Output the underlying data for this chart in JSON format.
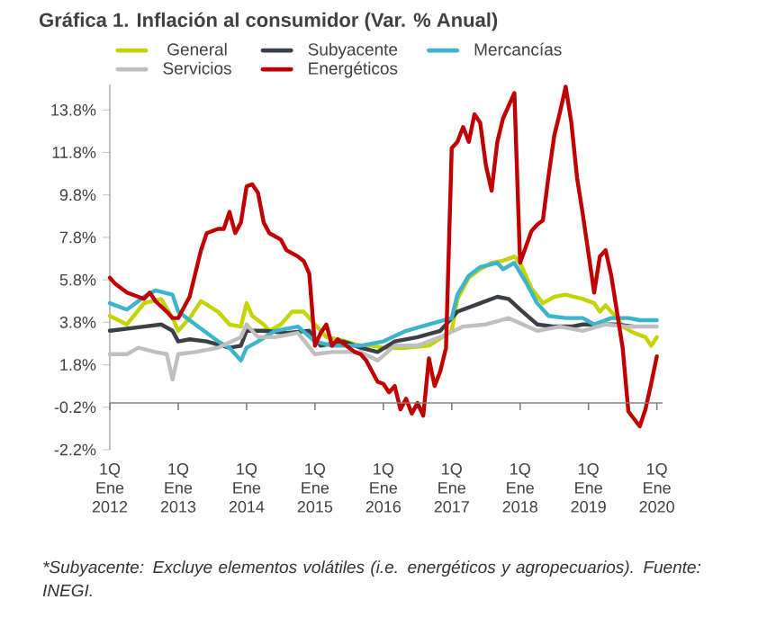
{
  "chart_data": {
    "type": "line",
    "title": "Gráfica 1. Inflación al consumidor (Var. % Anual)",
    "annotations": [
      "*Subyacente: Excluye elementos volátiles (i.e. energéticos y agropecuarios). Fuente: INEGI."
    ],
    "xlim": [
      "2012-01",
      "2020-02"
    ],
    "xticks": [
      {
        "value": "2012-01",
        "label": "1Q Ene 2012"
      },
      {
        "value": "2013-01",
        "label": "1Q Ene 2013"
      },
      {
        "value": "2014-01",
        "label": "1Q Ene 2014"
      },
      {
        "value": "2015-01",
        "label": "1Q Ene 2015"
      },
      {
        "value": "2016-01",
        "label": "1Q Ene 2016"
      },
      {
        "value": "2017-01",
        "label": "1Q Ene 2017"
      },
      {
        "value": "2018-01",
        "label": "1Q Ene 2018"
      },
      {
        "value": "2019-01",
        "label": "1Q Ene 2019"
      },
      {
        "value": "2020-01",
        "label": "1Q Ene 2020"
      }
    ],
    "ylim": [
      -2.2,
      15.0
    ],
    "yticks": [
      {
        "value": -2.2,
        "label": "-2.2%"
      },
      {
        "value": -0.2,
        "label": "-0.2%"
      },
      {
        "value": 1.8,
        "label": "1.8%"
      },
      {
        "value": 3.8,
        "label": "3.8%"
      },
      {
        "value": 5.8,
        "label": "5.8%"
      },
      {
        "value": 7.8,
        "label": "7.8%"
      },
      {
        "value": 9.8,
        "label": "9.8%"
      },
      {
        "value": 11.8,
        "label": "11.8%"
      },
      {
        "value": 13.8,
        "label": "13.8%"
      }
    ],
    "ref_lines": [
      {
        "axis": "y",
        "value": 0,
        "color": "#808080"
      }
    ],
    "legend": "top",
    "line_style": "solid",
    "marker": "none",
    "series": [
      {
        "name": "General",
        "color": "#c3d400",
        "x": [
          "2012-01",
          "2012-04",
          "2012-07",
          "2012-10",
          "2012-12",
          "2013-01",
          "2013-03",
          "2013-05",
          "2013-08",
          "2013-10",
          "2013-12",
          "2014-01",
          "2014-02",
          "2014-04",
          "2014-05",
          "2014-07",
          "2014-09",
          "2014-11",
          "2015-01",
          "2015-03",
          "2015-05",
          "2015-09",
          "2015-11",
          "2016-01",
          "2016-05",
          "2016-09",
          "2017-01",
          "2017-02",
          "2017-04",
          "2017-06",
          "2017-08",
          "2017-10",
          "2017-12",
          "2018-01",
          "2018-03",
          "2018-05",
          "2018-07",
          "2018-09",
          "2018-12",
          "2019-02",
          "2019-03",
          "2019-04",
          "2019-06",
          "2019-07",
          "2019-09",
          "2019-11",
          "2019-12",
          "2020-01"
        ],
        "values": [
          4.1,
          3.7,
          4.7,
          4.9,
          4.0,
          3.4,
          4.0,
          4.8,
          4.3,
          3.7,
          3.6,
          4.7,
          4.1,
          3.7,
          3.4,
          3.7,
          4.3,
          4.3,
          3.7,
          3.1,
          3.0,
          2.7,
          2.7,
          2.6,
          2.6,
          2.7,
          3.4,
          4.9,
          5.9,
          6.3,
          6.6,
          6.7,
          6.9,
          6.6,
          5.4,
          4.7,
          5.0,
          5.1,
          4.9,
          4.7,
          4.3,
          4.6,
          4.0,
          3.6,
          3.3,
          3.1,
          2.7,
          3.1
        ]
      },
      {
        "name": "Subyacente",
        "color": "#3b4048",
        "x": [
          "2012-01",
          "2012-07",
          "2012-10",
          "2012-12",
          "2013-01",
          "2013-03",
          "2013-06",
          "2013-10",
          "2013-12",
          "2014-01",
          "2014-04",
          "2014-08",
          "2014-12",
          "2015-02",
          "2015-06",
          "2015-09",
          "2015-12",
          "2016-03",
          "2016-07",
          "2016-11",
          "2017-02",
          "2017-06",
          "2017-09",
          "2017-11",
          "2018-01",
          "2018-04",
          "2018-07",
          "2018-10",
          "2018-12",
          "2019-03",
          "2019-06",
          "2019-09"
        ],
        "values": [
          3.4,
          3.6,
          3.7,
          3.4,
          2.9,
          3.0,
          2.9,
          2.6,
          2.7,
          3.4,
          3.4,
          3.3,
          3.4,
          2.7,
          2.9,
          2.6,
          2.4,
          2.9,
          3.1,
          3.4,
          4.3,
          4.7,
          5.0,
          4.9,
          4.4,
          3.7,
          3.6,
          3.6,
          3.7,
          3.7,
          3.7,
          3.6
        ]
      },
      {
        "name": "Mercancías",
        "color": "#3cb4cc",
        "x": [
          "2012-01",
          "2012-04",
          "2012-07",
          "2012-09",
          "2012-12",
          "2013-01",
          "2013-04",
          "2013-08",
          "2013-10",
          "2013-12",
          "2014-01",
          "2014-03",
          "2014-06",
          "2014-10",
          "2015-01",
          "2015-04",
          "2015-09",
          "2016-01",
          "2016-05",
          "2016-09",
          "2017-01",
          "2017-02",
          "2017-04",
          "2017-06",
          "2017-09",
          "2017-10",
          "2017-12",
          "2018-02",
          "2018-04",
          "2018-06",
          "2018-09",
          "2018-12",
          "2019-02",
          "2019-05",
          "2019-08",
          "2019-10",
          "2020-01"
        ],
        "values": [
          4.7,
          4.4,
          5.0,
          5.3,
          5.1,
          4.3,
          3.7,
          2.9,
          2.6,
          2.0,
          2.6,
          2.9,
          3.4,
          3.6,
          2.9,
          2.7,
          2.7,
          2.9,
          3.4,
          3.7,
          4.0,
          5.1,
          6.0,
          6.4,
          6.6,
          6.3,
          6.6,
          5.7,
          4.7,
          4.1,
          4.0,
          4.0,
          3.7,
          4.0,
          4.0,
          3.9,
          3.9
        ]
      },
      {
        "name": "Servicios",
        "color": "#bfbfbf",
        "x": [
          "2012-01",
          "2012-04",
          "2012-06",
          "2012-09",
          "2012-11",
          "2012-12",
          "2013-01",
          "2013-04",
          "2013-08",
          "2013-12",
          "2014-01",
          "2014-03",
          "2014-06",
          "2014-10",
          "2015-01",
          "2015-04",
          "2015-09",
          "2015-12",
          "2016-03",
          "2016-07",
          "2016-11",
          "2017-03",
          "2017-07",
          "2017-11",
          "2018-04",
          "2018-08",
          "2018-12",
          "2019-04",
          "2019-08",
          "2020-01"
        ],
        "values": [
          2.3,
          2.3,
          2.6,
          2.4,
          2.3,
          1.1,
          2.3,
          2.4,
          2.6,
          3.1,
          3.7,
          3.1,
          3.1,
          3.3,
          2.3,
          2.4,
          2.4,
          2.0,
          2.7,
          2.7,
          3.1,
          3.6,
          3.7,
          4.0,
          3.4,
          3.6,
          3.4,
          3.7,
          3.6,
          3.6
        ]
      },
      {
        "name": "Energéticos",
        "color": "#c00000",
        "x": [
          "2012-01",
          "2012-02",
          "2012-04",
          "2012-06",
          "2012-07",
          "2012-08",
          "2012-09",
          "2012-11",
          "2012-12",
          "2013-01",
          "2013-02",
          "2013-03",
          "2013-05",
          "2013-06",
          "2013-08",
          "2013-09",
          "2013-10",
          "2013-11",
          "2013-12",
          "2014-01",
          "2014-02",
          "2014-03",
          "2014-04",
          "2014-05",
          "2014-07",
          "2014-08",
          "2014-10",
          "2014-11",
          "2014-12",
          "2015-01",
          "2015-02",
          "2015-03",
          "2015-04",
          "2015-05",
          "2015-07",
          "2015-08",
          "2015-09",
          "2015-10",
          "2015-11",
          "2015-12",
          "2016-01",
          "2016-02",
          "2016-03",
          "2016-04",
          "2016-05",
          "2016-06",
          "2016-07",
          "2016-08",
          "2016-09",
          "2016-10",
          "2016-11",
          "2016-12",
          "2017-01",
          "2017-02",
          "2017-03",
          "2017-04",
          "2017-05",
          "2017-06",
          "2017-07",
          "2017-08",
          "2017-09",
          "2017-10",
          "2017-11",
          "2017-12",
          "2018-01",
          "2018-03",
          "2018-04",
          "2018-05",
          "2018-06",
          "2018-07",
          "2018-08",
          "2018-09",
          "2018-10",
          "2018-11",
          "2018-12",
          "2019-02",
          "2019-03",
          "2019-04",
          "2019-05",
          "2019-07",
          "2019-08",
          "2019-10",
          "2019-11",
          "2019-12",
          "2020-01"
        ],
        "values": [
          5.9,
          5.6,
          5.2,
          5.0,
          4.9,
          5.2,
          4.8,
          4.3,
          4.0,
          4.0,
          4.5,
          5.0,
          7.2,
          8.0,
          8.2,
          8.2,
          9.0,
          8.0,
          8.5,
          10.2,
          10.3,
          9.9,
          8.5,
          8.0,
          7.7,
          7.2,
          6.9,
          6.7,
          6.1,
          2.7,
          3.3,
          3.7,
          2.7,
          3.0,
          2.6,
          2.4,
          2.3,
          2.0,
          1.5,
          1.0,
          0.9,
          0.5,
          0.8,
          -0.3,
          0.2,
          -0.5,
          0.0,
          -0.6,
          2.1,
          0.8,
          1.5,
          2.6,
          12.0,
          12.3,
          13.0,
          12.3,
          13.6,
          13.2,
          11.2,
          10.0,
          12.3,
          13.4,
          14.0,
          14.6,
          6.6,
          8.1,
          8.4,
          8.6,
          10.7,
          12.6,
          13.7,
          14.9,
          13.2,
          10.6,
          8.9,
          5.2,
          6.9,
          7.2,
          6.0,
          2.6,
          -0.4,
          -1.1,
          -0.3,
          0.9,
          2.2
        ]
      }
    ]
  }
}
